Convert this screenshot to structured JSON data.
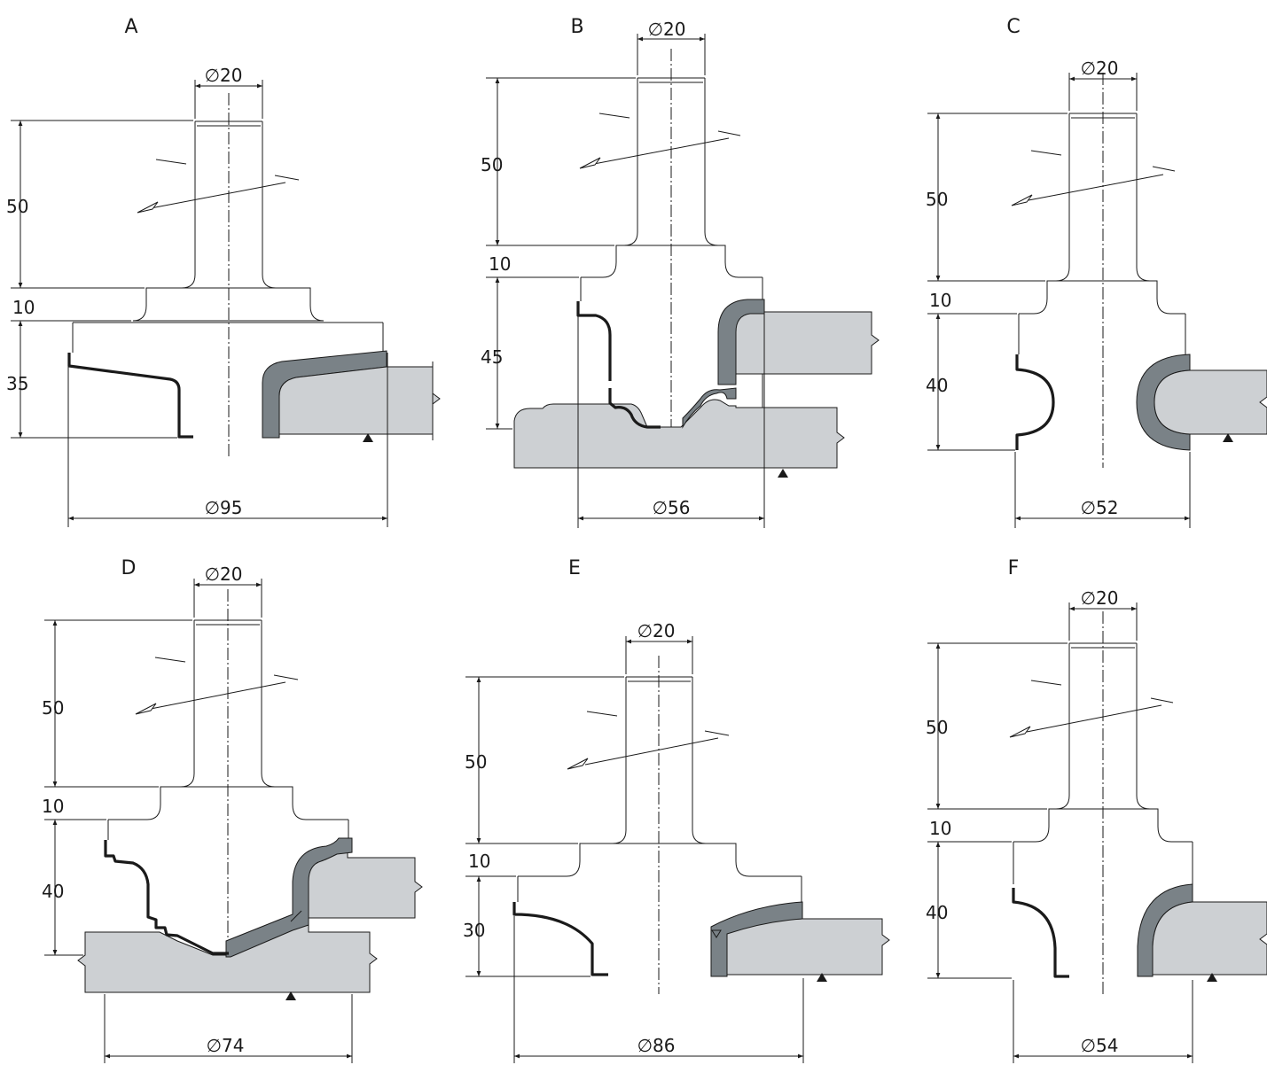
{
  "panels": [
    {
      "label": "A",
      "shank_diameter": "∅20",
      "shank_length": "50",
      "collar_height": "10",
      "cutting_height": "35",
      "cutter_diameter": "∅95"
    },
    {
      "label": "B",
      "shank_diameter": "∅20",
      "shank_length": "50",
      "collar_height": "10",
      "cutting_height": "45",
      "cutter_diameter": "∅56"
    },
    {
      "label": "C",
      "shank_diameter": "∅20",
      "shank_length": "50",
      "collar_height": "10",
      "cutting_height": "40",
      "cutter_diameter": "∅52"
    },
    {
      "label": "D",
      "shank_diameter": "∅20",
      "shank_length": "50",
      "collar_height": "10",
      "cutting_height": "40",
      "cutter_diameter": "∅74"
    },
    {
      "label": "E",
      "shank_diameter": "∅20",
      "shank_length": "50",
      "collar_height": "10",
      "cutting_height": "30",
      "cutter_diameter": "∅86"
    },
    {
      "label": "F",
      "shank_diameter": "∅20",
      "shank_length": "50",
      "collar_height": "10",
      "cutting_height": "40",
      "cutter_diameter": "∅54"
    }
  ],
  "colors": {
    "line": "#1a1a1a",
    "blade": "#7a8287",
    "workpiece": "#cdd0d3",
    "background": "#ffffff"
  }
}
